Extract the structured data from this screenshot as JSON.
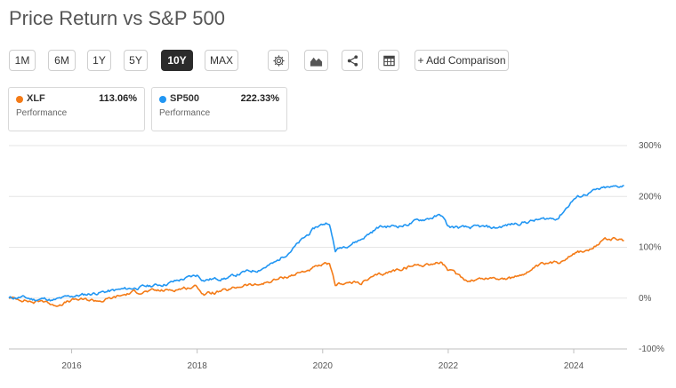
{
  "title": "Price Return vs S&P 500",
  "ranges": [
    "1M",
    "6M",
    "1Y",
    "5Y",
    "10Y",
    "MAX"
  ],
  "active_range": "10Y",
  "toolbar": {
    "settings_icon": "gear-icon",
    "chart_type_icon": "area-chart-icon",
    "share_icon": "share-icon",
    "table_icon": "table-icon",
    "add_comparison_label": "+ Add Comparison"
  },
  "cards": [
    {
      "symbol": "XLF",
      "value": "113.06%",
      "label": "Performance",
      "color": "#f47b17"
    },
    {
      "symbol": "SP500",
      "value": "222.33%",
      "label": "Performance",
      "color": "#2196f3"
    }
  ],
  "chart_data": {
    "type": "line",
    "title": "Price Return vs S&P 500",
    "xlabel": "",
    "ylabel": "",
    "xlim": [
      2015.0,
      2024.85
    ],
    "ylim": [
      -100,
      300
    ],
    "y_ticks": [
      300,
      200,
      100,
      0,
      -100
    ],
    "y_tick_labels": [
      "300%",
      "200%",
      "100%",
      "0%",
      "-100%"
    ],
    "x_ticks": [
      2016,
      2018,
      2020,
      2022,
      2024
    ],
    "x_tick_labels": [
      "2016",
      "2018",
      "2020",
      "2022",
      "2024"
    ],
    "grid": true,
    "legend": "top-left",
    "series": [
      {
        "name": "SP500",
        "color": "#2196f3",
        "x": [
          2015.0,
          2015.2,
          2015.4,
          2015.6,
          2015.7,
          2016.0,
          2016.1,
          2016.5,
          2017.0,
          2017.5,
          2018.0,
          2018.1,
          2018.5,
          2018.75,
          2018.95,
          2019.25,
          2019.5,
          2019.9,
          2020.1,
          2020.2,
          2020.3,
          2020.6,
          2020.9,
          2021.3,
          2021.5,
          2021.9,
          2022.0,
          2022.3,
          2022.5,
          2022.75,
          2023.0,
          2023.5,
          2023.75,
          2024.0,
          2024.3,
          2024.5,
          2024.6,
          2024.8
        ],
        "values": [
          0,
          2,
          -3,
          -1,
          -5,
          4,
          5,
          12,
          20,
          28,
          45,
          36,
          40,
          51,
          55,
          70,
          95,
          140,
          150,
          93,
          100,
          115,
          140,
          143,
          152,
          163,
          140,
          138,
          140,
          138,
          145,
          155,
          158,
          195,
          210,
          216,
          217,
          222
        ]
      },
      {
        "name": "XLF",
        "color": "#f47b17",
        "x": [
          2015.0,
          2015.2,
          2015.4,
          2015.6,
          2015.7,
          2016.0,
          2016.1,
          2016.5,
          2017.0,
          2017.5,
          2018.0,
          2018.1,
          2018.5,
          2018.75,
          2018.95,
          2019.25,
          2019.5,
          2019.9,
          2020.1,
          2020.2,
          2020.3,
          2020.6,
          2020.9,
          2021.3,
          2021.5,
          2021.9,
          2022.0,
          2022.3,
          2022.5,
          2022.75,
          2023.0,
          2023.5,
          2023.75,
          2024.0,
          2024.3,
          2024.5,
          2024.6,
          2024.8
        ],
        "values": [
          0,
          -2,
          -8,
          -5,
          -15,
          -5,
          -3,
          -5,
          12,
          15,
          23,
          8,
          15,
          26,
          25,
          36,
          45,
          60,
          68,
          25,
          30,
          30,
          45,
          60,
          65,
          70,
          55,
          35,
          38,
          40,
          38,
          65,
          70,
          90,
          95,
          118,
          117,
          113
        ]
      }
    ]
  }
}
